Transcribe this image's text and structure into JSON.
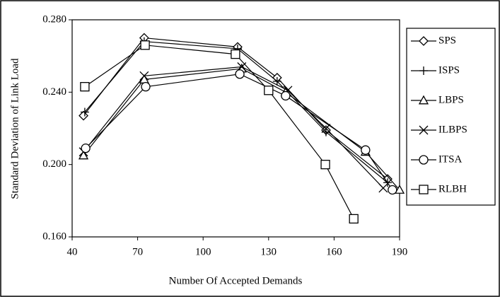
{
  "chart_data": {
    "type": "line",
    "xlabel": "Number Of Accepted Demands",
    "ylabel": "Standard Deviation of Link Load",
    "xlim": [
      40,
      190
    ],
    "xticks": [
      40,
      70,
      100,
      130,
      160,
      190
    ],
    "ylim": [
      0.16,
      0.28
    ],
    "yticks": [
      {
        "value": 0.16,
        "label": "0.160"
      },
      {
        "value": 0.2,
        "label": "0.200"
      },
      {
        "value": 0.24,
        "label": "0.240"
      },
      {
        "value": 0.28,
        "label": "0.280"
      }
    ],
    "series": [
      {
        "name": "SPS",
        "color": "#000000",
        "marker": "diamond",
        "x": [
          45.2,
          73,
          115.8,
          133.9,
          156.3,
          184.5
        ],
        "values": [
          0.227,
          0.27,
          0.265,
          0.248,
          0.219,
          0.192
        ]
      },
      {
        "name": "ISPS",
        "color": "#000000",
        "marker": "plus",
        "x": [
          45.8,
          73,
          115.8,
          133.9,
          156.3,
          184.5
        ],
        "values": [
          0.229,
          0.268,
          0.264,
          0.246,
          0.218,
          0.19
        ]
      },
      {
        "name": "LBPS",
        "color": "#000000",
        "marker": "triangle",
        "x": [
          45.2,
          73,
          117.7,
          137.8,
          174.4,
          190
        ],
        "values": [
          0.205,
          0.247,
          0.253,
          0.24,
          0.207,
          0.186
        ]
      },
      {
        "name": "ILBPS",
        "color": "#000000",
        "marker": "cross",
        "x": [
          45.2,
          73,
          117.7,
          138.8,
          156.3,
          182.5
        ],
        "values": [
          0.207,
          0.249,
          0.254,
          0.241,
          0.22,
          0.187
        ]
      },
      {
        "name": "ITSA",
        "color": "#000000",
        "marker": "circle",
        "x": [
          46.2,
          73.7,
          116.8,
          137.8,
          174.4,
          186.7
        ],
        "values": [
          0.209,
          0.243,
          0.25,
          0.238,
          0.208,
          0.186
        ]
      },
      {
        "name": "RLBH",
        "color": "#000000",
        "marker": "square",
        "x": [
          45.8,
          73.4,
          114.8,
          130,
          156,
          169
        ],
        "values": [
          0.243,
          0.266,
          0.261,
          0.241,
          0.2,
          0.17
        ]
      }
    ]
  }
}
